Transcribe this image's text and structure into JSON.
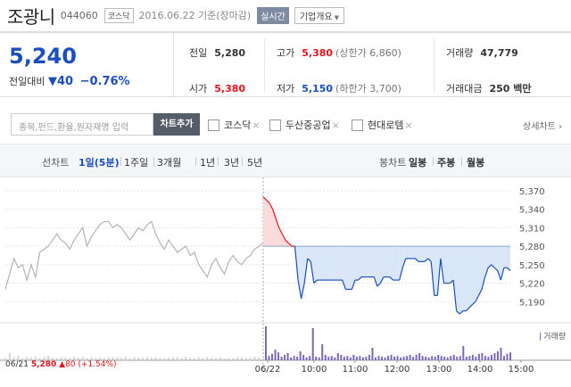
{
  "header": {
    "name": "조광니",
    "code": "044060",
    "market_badge": "코스닥",
    "date_text": "2016.06.22 기준(장마감)",
    "realtime_label": "실시간",
    "overview_label": "기업개요"
  },
  "quote": {
    "price": "5,240",
    "change_label": "전일대비",
    "change_arrow": "▼",
    "change_value": "40",
    "change_pct": "−0.76%",
    "prev_close_label": "전일",
    "prev_close": "5,280",
    "high_label": "고가",
    "high": "5,380",
    "upper_limit": "(상한가 6,860)",
    "volume_label": "거래량",
    "volume": "47,779",
    "open_label": "시가",
    "open": "5,380",
    "low_label": "저가",
    "low": "5,150",
    "lower_limit": "(하한가 3,700)",
    "amount_label": "거래대금",
    "amount": "250 백만"
  },
  "compare": {
    "placeholder": "종목,펀드,환율,원자재명 입력",
    "add_label": "차트추가",
    "items": [
      {
        "label": "코스닥"
      },
      {
        "label": "두산중공업"
      },
      {
        "label": "현대로템"
      }
    ],
    "remove_symbol": "×",
    "detail_label": "상세차트 ›"
  },
  "periods": {
    "line_label": "선차트",
    "options": [
      "1일(5분)",
      "1주일",
      "3개월",
      "1년",
      "3년",
      "5년"
    ],
    "selected": "1일(5분)",
    "candle_label": "봉차트",
    "candle_options": [
      "일봉",
      "주봉",
      "월봉"
    ]
  },
  "chart_data": {
    "type": "line",
    "y_ticks": [
      "5,370",
      "5,340",
      "5,310",
      "5,280",
      "5,250",
      "5,220",
      "5,190"
    ],
    "ylim": [
      5160,
      5380
    ],
    "baseline": 5280,
    "prev_day_series": [
      5210,
      5235,
      5260,
      5245,
      5250,
      5225,
      5250,
      5230,
      5270,
      5275,
      5280,
      5290,
      5300,
      5290,
      5285,
      5275,
      5290,
      5300,
      5310,
      5280,
      5295,
      5305,
      5315,
      5320,
      5320,
      5310,
      5315,
      5310,
      5300,
      5290,
      5300,
      5310,
      5305,
      5315,
      5320,
      5300,
      5285,
      5275,
      5290,
      5280,
      5270,
      5275,
      5280,
      5265,
      5270,
      5250,
      5240,
      5230,
      5250,
      5260,
      5245,
      5235,
      5255,
      5265,
      5255,
      5250,
      5260,
      5265,
      5275,
      5280,
      5285
    ],
    "x_labels": [
      "06/22",
      "10:00",
      "11:00",
      "12:00",
      "13:00",
      "14:00",
      "15:00"
    ],
    "today_series": [
      5360,
      5355,
      5350,
      5340,
      5325,
      5310,
      5300,
      5290,
      5285,
      5280,
      5280,
      5225,
      5195,
      5220,
      5260,
      5255,
      5220,
      5225,
      5225,
      5225,
      5225,
      5225,
      5225,
      5225,
      5225,
      5225,
      5210,
      5210,
      5210,
      5225,
      5225,
      5230,
      5230,
      5230,
      5230,
      5230,
      5215,
      5220,
      5230,
      5230,
      5230,
      5225,
      5225,
      5225,
      5245,
      5260,
      5260,
      5260,
      5260,
      5255,
      5255,
      5255,
      5260,
      5255,
      5200,
      5200,
      5260,
      5220,
      5220,
      5220,
      5225,
      5175,
      5170,
      5175,
      5175,
      5180,
      5185,
      5190,
      5200,
      5210,
      5230,
      5245,
      5250,
      5245,
      5240,
      5225,
      5245,
      5245,
      5240
    ],
    "volume_prev": [
      6,
      20,
      8,
      12,
      5,
      9,
      7,
      10,
      6,
      8,
      12,
      7,
      5,
      9,
      8,
      6,
      10,
      7,
      9,
      6,
      8,
      5,
      7,
      6,
      9,
      8,
      7,
      6,
      10,
      5,
      8,
      7,
      6,
      9,
      7,
      8,
      6,
      5,
      7,
      9,
      8,
      6,
      10,
      7,
      5,
      8,
      6,
      9,
      7,
      6,
      8,
      5,
      7,
      6,
      9,
      8,
      7,
      6,
      10,
      8,
      6
    ],
    "volume_today": [
      95,
      12,
      18,
      30,
      22,
      10,
      15,
      20,
      8,
      12,
      10,
      25,
      15,
      8,
      12,
      90,
      10,
      8,
      45,
      15,
      10,
      12,
      8,
      20,
      15,
      10,
      12,
      8,
      15,
      10,
      12,
      8,
      10,
      15,
      35,
      8,
      12,
      10,
      8,
      12,
      15,
      10,
      12,
      8,
      10,
      12,
      15,
      10,
      15,
      20,
      12,
      10,
      8,
      12,
      10,
      15,
      12,
      10,
      8,
      12,
      15,
      10,
      12,
      40,
      10,
      12,
      15,
      10,
      18,
      20,
      12,
      10,
      15,
      20,
      25,
      35,
      12,
      18,
      22
    ],
    "volume_legend": "거래량",
    "prev_day": {
      "date": "06/21",
      "close": "5,280",
      "change": "▲80",
      "pct": "(+1.54%)"
    }
  },
  "colors": {
    "down": "#1a4dbf",
    "up": "#e5141c",
    "down_fill": "#d8e6f8",
    "up_fill": "#fadada",
    "prev_line": "#b3b3b3",
    "volume_bar": "#7b68b5"
  }
}
